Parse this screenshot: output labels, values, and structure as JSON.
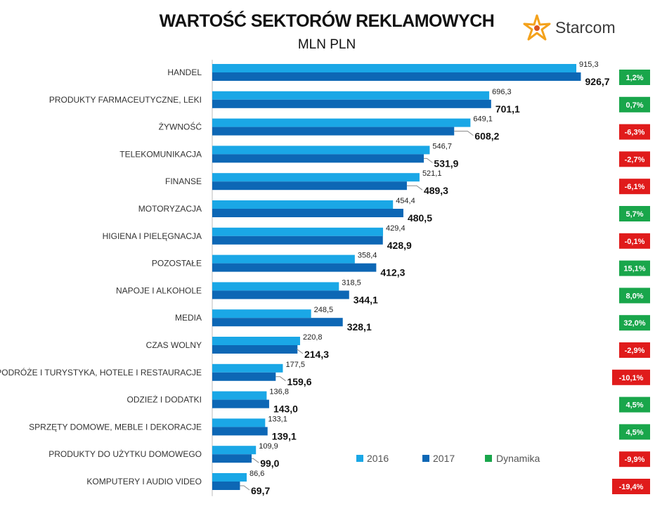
{
  "header": {
    "title": "WARTOŚĆ SEKTORÓW REKLAMOWYCH",
    "subtitle": "MLN PLN",
    "logo_text": "Starcom"
  },
  "colors": {
    "series_2016": "#1aa7e6",
    "series_2017": "#0d67b5",
    "positive": "#19a64b",
    "negative": "#e01b1b",
    "logo_star": "#f4a21c"
  },
  "chart_data": {
    "type": "bar",
    "orientation": "horizontal",
    "title": "WARTOŚĆ SEKTORÓW REKLAMOWYCH",
    "subtitle": "MLN PLN",
    "xlim": [
      0,
      950
    ],
    "categories": [
      "HANDEL",
      "PRODUKTY FARMACEUTYCZNE, LEKI",
      "ŻYWNOŚĆ",
      "TELEKOMUNIKACJA",
      "FINANSE",
      "MOTORYZACJA",
      "HIGIENA I PIELĘGNACJA",
      "POZOSTAŁE",
      "NAPOJE I ALKOHOLE",
      "MEDIA",
      "CZAS WOLNY",
      "PODRÓŻE I TURYSTYKA, HOTELE I RESTAURACJE",
      "ODZIEŻ I DODATKI",
      "SPRZĘTY DOMOWE, MEBLE I DEKORACJE",
      "PRODUKTY DO UŻYTKU DOMOWEGO",
      "KOMPUTERY I AUDIO VIDEO"
    ],
    "series": [
      {
        "name": "2016",
        "values": [
          915.3,
          696.3,
          649.1,
          546.7,
          521.1,
          454.4,
          429.4,
          358.4,
          318.5,
          248.5,
          220.8,
          177.5,
          136.8,
          133.1,
          109.9,
          86.6
        ],
        "labels": [
          "915,3",
          "696,3",
          "649,1",
          "546,7",
          "521,1",
          "454,4",
          "429,4",
          "358,4",
          "318,5",
          "248,5",
          "220,8",
          "177,5",
          "136,8",
          "133,1",
          "109,9",
          "86,6"
        ]
      },
      {
        "name": "2017",
        "values": [
          926.7,
          701.1,
          608.2,
          531.9,
          489.3,
          480.5,
          428.9,
          412.3,
          344.1,
          328.1,
          214.3,
          159.6,
          143.0,
          139.1,
          99.0,
          69.7
        ],
        "labels": [
          "926,7",
          "701,1",
          "608,2",
          "531,9",
          "489,3",
          "480,5",
          "428,9",
          "412,3",
          "344,1",
          "328,1",
          "214,3",
          "159,6",
          "143,0",
          "139,1",
          "99,0",
          "69,7"
        ]
      }
    ],
    "dynamics": {
      "name": "Dynamika",
      "values": [
        1.2,
        0.7,
        -6.3,
        -2.7,
        -6.1,
        5.7,
        -0.1,
        15.1,
        8.0,
        32.0,
        -2.9,
        -10.1,
        4.5,
        4.5,
        -9.9,
        -19.4
      ],
      "labels": [
        "1,2%",
        "0,7%",
        "-6,3%",
        "-2,7%",
        "-6,1%",
        "5,7%",
        "-0,1%",
        "15,1%",
        "8,0%",
        "32,0%",
        "-2,9%",
        "-10,1%",
        "4,5%",
        "4,5%",
        "-9,9%",
        "-19,4%"
      ]
    },
    "legend": {
      "placement": "bottom-center-inside",
      "items": [
        "2016",
        "2017",
        "Dynamika"
      ]
    }
  }
}
